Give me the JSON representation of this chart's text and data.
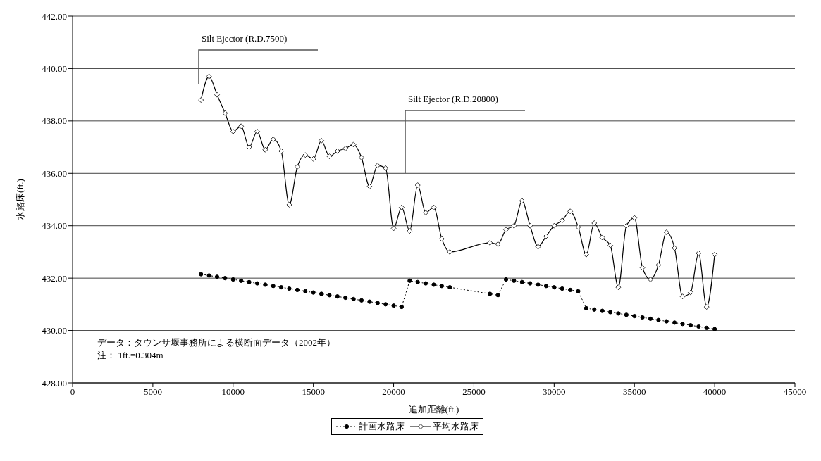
{
  "chart_data": {
    "type": "line",
    "xlabel": "追加距離(ft.)",
    "ylabel": "水路床(ft.)",
    "xlim": [
      0,
      45000
    ],
    "xticks": [
      0,
      5000,
      10000,
      15000,
      20000,
      25000,
      30000,
      35000,
      40000,
      45000
    ],
    "ylim": [
      428,
      442
    ],
    "yticks": [
      {
        "value": 428,
        "label": "428.00"
      },
      {
        "value": 430,
        "label": "430.00"
      },
      {
        "value": 432,
        "label": "432.00"
      },
      {
        "value": 434,
        "label": "434.00"
      },
      {
        "value": 436,
        "label": "436.00"
      },
      {
        "value": 438,
        "label": "438.00"
      },
      {
        "value": 440,
        "label": "440.00"
      },
      {
        "value": 442,
        "label": "442.00"
      }
    ],
    "grid": "y",
    "legend": "bottom",
    "series": [
      {
        "name": "計画水路床",
        "color": "#000000",
        "marker": "circle",
        "line_style": "dotted",
        "x": [
          8000,
          8500,
          9000,
          9500,
          10000,
          10500,
          11000,
          11500,
          12000,
          12500,
          13000,
          13500,
          14000,
          14500,
          15000,
          15500,
          16000,
          16500,
          17000,
          17500,
          18000,
          18500,
          19000,
          19500,
          20000,
          20500,
          21000,
          21500,
          22000,
          22500,
          23000,
          23500,
          26000,
          26500,
          27000,
          27500,
          28000,
          28500,
          29000,
          29500,
          30000,
          30500,
          31000,
          31500,
          32000,
          32500,
          33000,
          33500,
          34000,
          34500,
          35000,
          35500,
          36000,
          36500,
          37000,
          37500,
          38000,
          38500,
          39000,
          39500,
          40000
        ],
        "values": [
          432.15,
          432.1,
          432.05,
          432.0,
          431.95,
          431.9,
          431.85,
          431.8,
          431.75,
          431.7,
          431.65,
          431.6,
          431.55,
          431.5,
          431.45,
          431.4,
          431.35,
          431.3,
          431.25,
          431.2,
          431.15,
          431.1,
          431.05,
          431.0,
          430.95,
          430.9,
          431.9,
          431.85,
          431.8,
          431.75,
          431.7,
          431.65,
          431.4,
          431.35,
          431.95,
          431.9,
          431.85,
          431.8,
          431.75,
          431.7,
          431.65,
          431.6,
          431.55,
          431.5,
          430.85,
          430.8,
          430.75,
          430.7,
          430.65,
          430.6,
          430.55,
          430.5,
          430.45,
          430.4,
          430.35,
          430.3,
          430.25,
          430.2,
          430.15,
          430.1,
          430.05
        ]
      },
      {
        "name": "平均水路床",
        "color": "#000000",
        "marker": "diamond",
        "line_style": "solid",
        "x": [
          8000,
          8500,
          9000,
          9500,
          10000,
          10500,
          11000,
          11500,
          12000,
          12500,
          13000,
          13500,
          14000,
          14500,
          15000,
          15500,
          16000,
          16500,
          17000,
          17500,
          18000,
          18500,
          19000,
          19500,
          20000,
          20500,
          21000,
          21500,
          22000,
          22500,
          23000,
          23500,
          26000,
          26500,
          27000,
          27500,
          28000,
          28500,
          29000,
          29500,
          30000,
          30500,
          31000,
          31500,
          32000,
          32500,
          33000,
          33500,
          34000,
          34500,
          35000,
          35500,
          36000,
          36500,
          37000,
          37500,
          38000,
          38500,
          39000,
          39500,
          40000
        ],
        "values": [
          438.8,
          439.7,
          439.0,
          438.3,
          437.6,
          437.8,
          437.0,
          437.6,
          436.9,
          437.3,
          436.85,
          434.8,
          436.25,
          436.7,
          436.55,
          437.25,
          436.65,
          436.85,
          436.95,
          437.1,
          436.6,
          435.5,
          436.3,
          436.2,
          433.9,
          434.7,
          433.8,
          435.55,
          434.5,
          434.7,
          433.5,
          433.0,
          433.35,
          433.3,
          433.85,
          434.0,
          434.95,
          434.0,
          433.2,
          433.6,
          434.0,
          434.2,
          434.55,
          433.95,
          432.9,
          434.1,
          433.55,
          433.25,
          431.65,
          434.0,
          434.3,
          432.4,
          431.95,
          432.5,
          433.75,
          433.15,
          431.3,
          431.45,
          432.95,
          430.9,
          432.9
        ]
      }
    ],
    "annotations": [
      "Silt Ejector (R.D.7500)",
      "Silt Ejector (R.D.20800)",
      "データ：タウンサ堰事務所による横断面データ（2002年）",
      "注： 1ft.=0.304m"
    ]
  }
}
